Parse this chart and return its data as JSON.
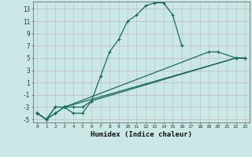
{
  "title": "",
  "xlabel": "Humidex (Indice chaleur)",
  "ylabel": "",
  "bg_color": "#cce8e6",
  "grid_color": "#aacfcd",
  "line_color": "#1a6b5a",
  "xlim": [
    -0.5,
    23.5
  ],
  "ylim": [
    -5.5,
    14.2
  ],
  "xticks": [
    0,
    1,
    2,
    3,
    4,
    5,
    6,
    7,
    8,
    9,
    10,
    11,
    12,
    13,
    14,
    15,
    16,
    17,
    18,
    19,
    20,
    21,
    22,
    23
  ],
  "yticks": [
    -5,
    -3,
    -1,
    1,
    3,
    5,
    7,
    9,
    11,
    13
  ],
  "s0x": [
    0,
    1,
    2,
    3,
    4,
    5,
    6,
    7,
    8,
    9,
    10,
    11,
    12,
    13,
    14,
    15,
    16
  ],
  "s0y": [
    -4,
    -5,
    -4,
    -3,
    -4,
    -4,
    -2,
    2,
    6,
    8,
    11,
    12,
    13.5,
    14,
    14,
    12,
    7
  ],
  "s1x": [
    0,
    1,
    2,
    3,
    22,
    23
  ],
  "s1y": [
    -4,
    -5,
    -3,
    -3,
    5,
    5
  ],
  "s2x": [
    0,
    1,
    2,
    3,
    19,
    20,
    22,
    23
  ],
  "s2y": [
    -4,
    -5,
    -3,
    -3,
    6,
    6,
    5,
    5
  ],
  "s3x": [
    0,
    1,
    2,
    3,
    4,
    5,
    6,
    22,
    23
  ],
  "s3y": [
    -4,
    -5,
    -4,
    -3,
    -3,
    -3,
    -2,
    5,
    5
  ]
}
